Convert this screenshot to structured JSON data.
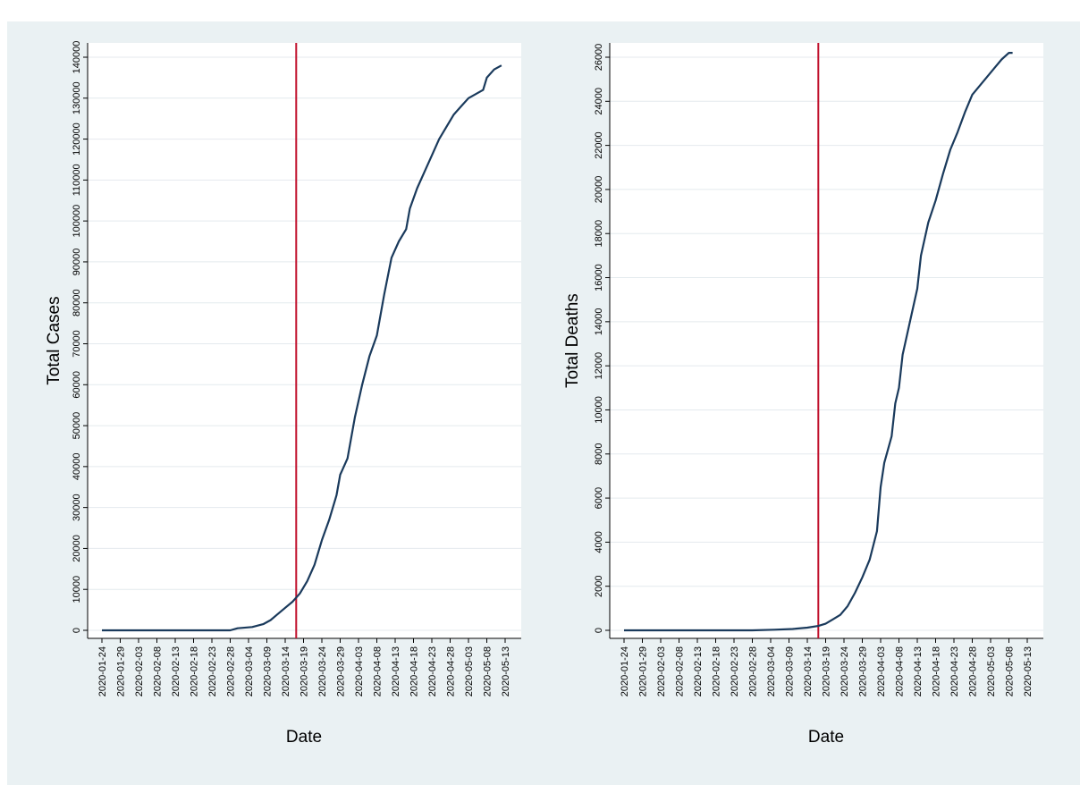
{
  "chart_data": [
    {
      "type": "line",
      "xlabel": "Date",
      "ylabel": "Total Cases",
      "x_ticks": [
        "2020-01-24",
        "2020-01-29",
        "2020-02-03",
        "2020-02-08",
        "2020-02-13",
        "2020-02-18",
        "2020-02-23",
        "2020-02-28",
        "2020-03-04",
        "2020-03-09",
        "2020-03-14",
        "2020-03-19",
        "2020-03-24",
        "2020-03-29",
        "2020-04-03",
        "2020-04-08",
        "2020-04-13",
        "2020-04-18",
        "2020-04-23",
        "2020-04-28",
        "2020-05-03",
        "2020-05-08",
        "2020-05-13"
      ],
      "y_ticks": [
        "0",
        "10000",
        "20000",
        "30000",
        "40000",
        "50000",
        "60000",
        "70000",
        "80000",
        "90000",
        "100000",
        "110000",
        "120000",
        "130000",
        "140000"
      ],
      "ylim": [
        0,
        140000
      ],
      "xlim": [
        "2020-01-24",
        "2020-05-13"
      ],
      "grid": true,
      "vline": {
        "x": "2020-03-17",
        "color": "#c0102c"
      },
      "line_color": "#1a3a5c",
      "series": [
        {
          "points": [
            [
              "2020-01-24",
              0
            ],
            [
              "2020-02-15",
              0
            ],
            [
              "2020-02-28",
              0
            ],
            [
              "2020-03-01",
              500
            ],
            [
              "2020-03-05",
              800
            ],
            [
              "2020-03-08",
              1500
            ],
            [
              "2020-03-10",
              2500
            ],
            [
              "2020-03-12",
              4000
            ],
            [
              "2020-03-14",
              5500
            ],
            [
              "2020-03-16",
              7000
            ],
            [
              "2020-03-18",
              9000
            ],
            [
              "2020-03-20",
              12000
            ],
            [
              "2020-03-22",
              16000
            ],
            [
              "2020-03-24",
              22000
            ],
            [
              "2020-03-26",
              27000
            ],
            [
              "2020-03-28",
              33000
            ],
            [
              "2020-03-29",
              38000
            ],
            [
              "2020-03-31",
              42000
            ],
            [
              "2020-04-02",
              52000
            ],
            [
              "2020-04-04",
              60000
            ],
            [
              "2020-04-06",
              67000
            ],
            [
              "2020-04-08",
              72000
            ],
            [
              "2020-04-10",
              82000
            ],
            [
              "2020-04-12",
              91000
            ],
            [
              "2020-04-14",
              95000
            ],
            [
              "2020-04-16",
              98000
            ],
            [
              "2020-04-17",
              103000
            ],
            [
              "2020-04-19",
              108000
            ],
            [
              "2020-04-21",
              112000
            ],
            [
              "2020-04-23",
              116000
            ],
            [
              "2020-04-25",
              120000
            ],
            [
              "2020-04-27",
              123000
            ],
            [
              "2020-04-29",
              126000
            ],
            [
              "2020-05-01",
              128000
            ],
            [
              "2020-05-03",
              130000
            ],
            [
              "2020-05-05",
              131000
            ],
            [
              "2020-05-07",
              132000
            ],
            [
              "2020-05-08",
              135000
            ],
            [
              "2020-05-10",
              137000
            ],
            [
              "2020-05-11",
              137500
            ],
            [
              "2020-05-12",
              138000
            ]
          ]
        }
      ]
    },
    {
      "type": "line",
      "xlabel": "Date",
      "ylabel": "Total Deaths",
      "x_ticks": [
        "2020-01-24",
        "2020-01-29",
        "2020-02-03",
        "2020-02-08",
        "2020-02-13",
        "2020-02-18",
        "2020-02-23",
        "2020-02-28",
        "2020-03-04",
        "2020-03-09",
        "2020-03-14",
        "2020-03-19",
        "2020-03-24",
        "2020-03-29",
        "2020-04-03",
        "2020-04-08",
        "2020-04-13",
        "2020-04-18",
        "2020-04-23",
        "2020-04-28",
        "2020-05-03",
        "2020-05-08",
        "2020-05-13"
      ],
      "y_ticks": [
        "0",
        "2000",
        "4000",
        "6000",
        "8000",
        "10000",
        "12000",
        "14000",
        "16000",
        "18000",
        "20000",
        "22000",
        "24000",
        "26000"
      ],
      "ylim": [
        0,
        26000
      ],
      "xlim": [
        "2020-01-24",
        "2020-05-13"
      ],
      "grid": true,
      "vline": {
        "x": "2020-03-17",
        "color": "#c0102c"
      },
      "line_color": "#1a3a5c",
      "series": [
        {
          "points": [
            [
              "2020-01-24",
              0
            ],
            [
              "2020-02-20",
              0
            ],
            [
              "2020-02-28",
              0
            ],
            [
              "2020-03-05",
              30
            ],
            [
              "2020-03-10",
              60
            ],
            [
              "2020-03-14",
              120
            ],
            [
              "2020-03-17",
              200
            ],
            [
              "2020-03-19",
              300
            ],
            [
              "2020-03-21",
              500
            ],
            [
              "2020-03-23",
              700
            ],
            [
              "2020-03-25",
              1100
            ],
            [
              "2020-03-27",
              1700
            ],
            [
              "2020-03-29",
              2400
            ],
            [
              "2020-03-31",
              3200
            ],
            [
              "2020-04-02",
              4500
            ],
            [
              "2020-04-03",
              6500
            ],
            [
              "2020-04-04",
              7600
            ],
            [
              "2020-04-06",
              8800
            ],
            [
              "2020-04-07",
              10300
            ],
            [
              "2020-04-08",
              11000
            ],
            [
              "2020-04-09",
              12500
            ],
            [
              "2020-04-11",
              14000
            ],
            [
              "2020-04-13",
              15500
            ],
            [
              "2020-04-14",
              17000
            ],
            [
              "2020-04-16",
              18500
            ],
            [
              "2020-04-18",
              19500
            ],
            [
              "2020-04-20",
              20700
            ],
            [
              "2020-04-22",
              21800
            ],
            [
              "2020-04-24",
              22600
            ],
            [
              "2020-04-26",
              23500
            ],
            [
              "2020-04-28",
              24300
            ],
            [
              "2020-04-30",
              24700
            ],
            [
              "2020-05-02",
              25100
            ],
            [
              "2020-05-04",
              25500
            ],
            [
              "2020-05-06",
              25900
            ],
            [
              "2020-05-08",
              26200
            ],
            [
              "2020-05-09",
              26200
            ]
          ]
        }
      ]
    }
  ]
}
